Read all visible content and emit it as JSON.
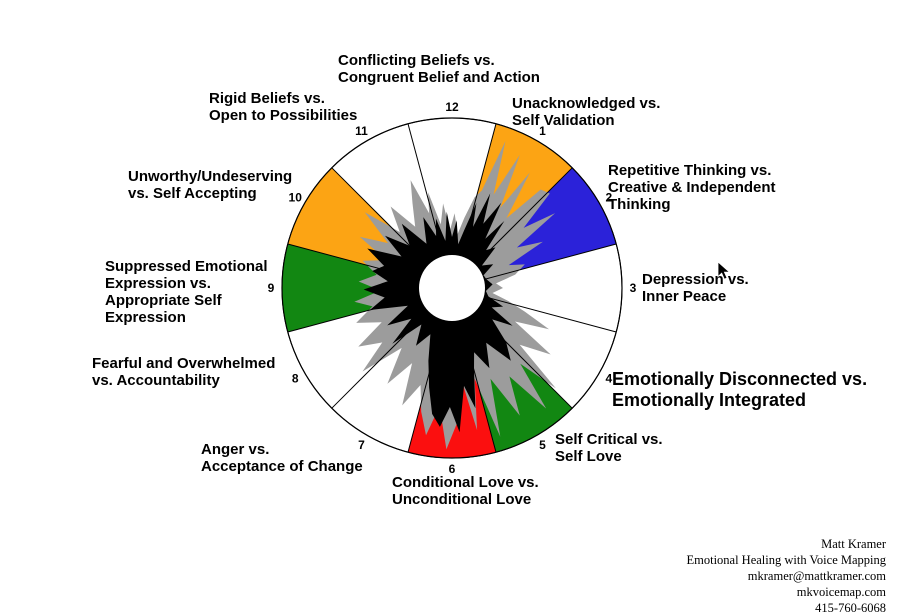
{
  "page": {
    "background": "#FFFFFF"
  },
  "credit": {
    "name": "Matt Kramer",
    "tagline": "Emotional Healing with Voice Mapping",
    "email": "mkramer@mattkramer.com",
    "website": "mkvoicemap.com",
    "phone": "415-760-6068"
  },
  "chart_data": {
    "type": "polar-sector-voice-map",
    "title": "",
    "sector_count": 12,
    "center": [
      452,
      288
    ],
    "outer_radius": 170,
    "inner_radius": 33,
    "number_radius": 181,
    "legend": "none",
    "grid": "12 radial dividers every 30 degrees, clock layout",
    "colors": {
      "orange": "#FCA414",
      "blue": "#2B22D9",
      "green": "#128712",
      "red": "#FB0F0F",
      "gray": "#9C9C9C",
      "black": "#000000",
      "outline": "#000000",
      "background": "#FFFFFF"
    },
    "sectors": [
      {
        "number": "1",
        "label": "Unacknowledged vs.\nSelf Validation",
        "fill": "#FCA414"
      },
      {
        "number": "2",
        "label": "Repetitive Thinking vs.\nCreative & Independent\nThinking",
        "fill": "#2B22D9"
      },
      {
        "number": "3",
        "label": "Depression vs.\nInner Peace",
        "fill": "#FFFFFF"
      },
      {
        "number": "4",
        "label": "Emotionally Disconnected vs.\nEmotionally Integrated",
        "fill": "#FFFFFF"
      },
      {
        "number": "5",
        "label": "Self Critical vs.\nSelf Love",
        "fill": "#128712"
      },
      {
        "number": "6",
        "label": "Conditional Love vs.\nUnconditional Love",
        "fill": "#FB0F0F"
      },
      {
        "number": "7",
        "label": "Anger vs.\nAcceptance of Change",
        "fill": "#FFFFFF"
      },
      {
        "number": "8",
        "label": "Fearful and Overwhelmed\nvs. Accountability",
        "fill": "#FFFFFF"
      },
      {
        "number": "9",
        "label": "Suppressed Emotional\nExpression vs.\nAppropriate Self\nExpression",
        "fill": "#128712"
      },
      {
        "number": "10",
        "label": "Unworthy/Undeserving\nvs. Self Accepting",
        "fill": "#FCA414"
      },
      {
        "number": "11",
        "label": "Rigid Beliefs vs.\nOpen to Possibilities",
        "fill": "#FFFFFF"
      },
      {
        "number": "12",
        "label": "Conflicting Beliefs vs.\nCongruent Belief and Action",
        "fill": "#FFFFFF"
      }
    ],
    "gray_profile": [
      [
        346,
        0.58
      ],
      [
        350,
        0.38
      ],
      [
        354,
        0.5
      ],
      [
        358,
        0.34
      ],
      [
        2,
        0.44
      ],
      [
        6,
        0.32
      ],
      [
        10,
        0.42
      ],
      [
        14,
        0.55
      ],
      [
        17,
        0.6
      ],
      [
        20,
        0.92
      ],
      [
        24,
        0.6
      ],
      [
        27,
        0.88
      ],
      [
        31,
        0.55
      ],
      [
        34,
        0.82
      ],
      [
        38,
        0.52
      ],
      [
        42,
        0.78
      ],
      [
        46,
        0.8
      ],
      [
        50,
        0.55
      ],
      [
        54,
        0.75
      ],
      [
        58,
        0.45
      ],
      [
        63,
        0.6
      ],
      [
        68,
        0.36
      ],
      [
        72,
        0.45
      ],
      [
        78,
        0.38
      ],
      [
        84,
        0.26
      ],
      [
        90,
        0.3
      ],
      [
        97,
        0.24
      ],
      [
        103,
        0.34
      ],
      [
        108,
        0.45
      ],
      [
        113,
        0.62
      ],
      [
        118,
        0.42
      ],
      [
        124,
        0.7
      ],
      [
        130,
        0.52
      ],
      [
        134,
        0.85
      ],
      [
        138,
        0.6
      ],
      [
        142,
        0.9
      ],
      [
        147,
        0.62
      ],
      [
        152,
        0.85
      ],
      [
        157,
        0.58
      ],
      [
        162,
        0.92
      ],
      [
        166,
        0.55
      ],
      [
        170,
        0.85
      ],
      [
        174,
        0.55
      ],
      [
        178,
        0.8
      ],
      [
        182,
        0.95
      ],
      [
        186,
        0.7
      ],
      [
        190,
        0.88
      ],
      [
        194,
        0.75
      ],
      [
        198,
        0.6
      ],
      [
        203,
        0.75
      ],
      [
        208,
        0.5
      ],
      [
        214,
        0.68
      ],
      [
        220,
        0.46
      ],
      [
        227,
        0.72
      ],
      [
        232,
        0.52
      ],
      [
        238,
        0.65
      ],
      [
        244,
        0.46
      ],
      [
        250,
        0.6
      ],
      [
        257,
        0.48
      ],
      [
        262,
        0.58
      ],
      [
        268,
        0.42
      ],
      [
        274,
        0.55
      ],
      [
        280,
        0.45
      ],
      [
        287,
        0.55
      ],
      [
        293,
        0.42
      ],
      [
        299,
        0.62
      ],
      [
        305,
        0.46
      ],
      [
        311,
        0.68
      ],
      [
        317,
        0.45
      ],
      [
        323,
        0.6
      ],
      [
        329,
        0.42
      ],
      [
        335,
        0.55
      ],
      [
        339,
        0.68
      ],
      [
        343,
        0.46
      ]
    ],
    "black_profile": [
      [
        347,
        0.42
      ],
      [
        352,
        0.28
      ],
      [
        356,
        0.45
      ],
      [
        0,
        0.3
      ],
      [
        4,
        0.4
      ],
      [
        8,
        0.26
      ],
      [
        12,
        0.35
      ],
      [
        16,
        0.52
      ],
      [
        19,
        0.38
      ],
      [
        22,
        0.6
      ],
      [
        26,
        0.42
      ],
      [
        30,
        0.58
      ],
      [
        34,
        0.35
      ],
      [
        38,
        0.5
      ],
      [
        42,
        0.3
      ],
      [
        47,
        0.35
      ],
      [
        53,
        0.22
      ],
      [
        60,
        0.28
      ],
      [
        68,
        0.2
      ],
      [
        76,
        0.21
      ],
      [
        85,
        0.24
      ],
      [
        95,
        0.2
      ],
      [
        103,
        0.22
      ],
      [
        110,
        0.32
      ],
      [
        116,
        0.26
      ],
      [
        122,
        0.42
      ],
      [
        128,
        0.3
      ],
      [
        135,
        0.45
      ],
      [
        141,
        0.55
      ],
      [
        148,
        0.38
      ],
      [
        155,
        0.52
      ],
      [
        161,
        0.4
      ],
      [
        165,
        0.5
      ],
      [
        169,
        0.72
      ],
      [
        173,
        0.58
      ],
      [
        177,
        0.85
      ],
      [
        181,
        0.7
      ],
      [
        185,
        0.82
      ],
      [
        189,
        0.75
      ],
      [
        193,
        0.6
      ],
      [
        198,
        0.45
      ],
      [
        205,
        0.3
      ],
      [
        212,
        0.4
      ],
      [
        220,
        0.28
      ],
      [
        227,
        0.48
      ],
      [
        233,
        0.3
      ],
      [
        240,
        0.44
      ],
      [
        248,
        0.28
      ],
      [
        255,
        0.5
      ],
      [
        262,
        0.4
      ],
      [
        269,
        0.52
      ],
      [
        276,
        0.38
      ],
      [
        282,
        0.48
      ],
      [
        288,
        0.42
      ],
      [
        295,
        0.55
      ],
      [
        302,
        0.35
      ],
      [
        308,
        0.5
      ],
      [
        315,
        0.35
      ],
      [
        322,
        0.48
      ],
      [
        330,
        0.3
      ],
      [
        338,
        0.45
      ],
      [
        343,
        0.32
      ]
    ]
  }
}
